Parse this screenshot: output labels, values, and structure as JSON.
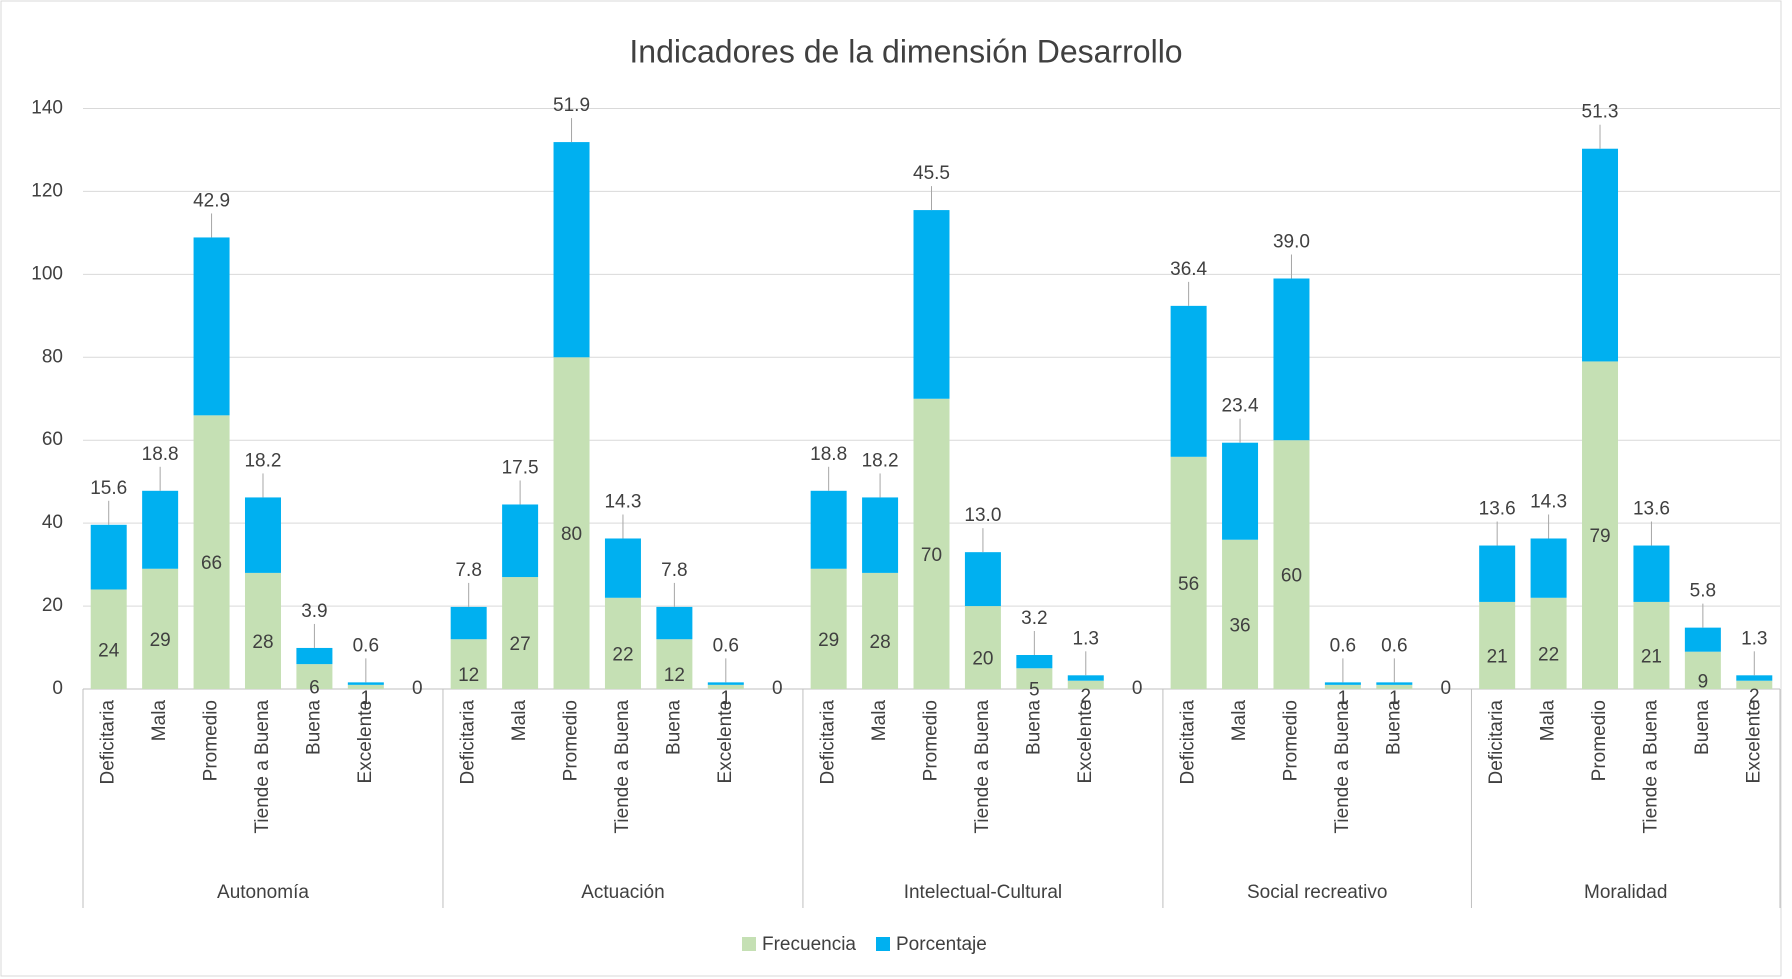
{
  "chart_data": {
    "type": "stacked_bar",
    "title": "Indicadores de la dimensión Desarrollo",
    "groups": [
      {
        "name": "Autonomía",
        "categories": [
          "Deficitaria",
          "Mala",
          "Promedio",
          "Tiende  a Buena",
          "Buena",
          "Excelente",
          null
        ]
      },
      {
        "name": "Actuación",
        "categories": [
          "Deficitaria",
          "Mala",
          "Promedio",
          "Tiende  a Buena",
          "Buena",
          "Excelente",
          null
        ]
      },
      {
        "name": "Intelectual-Cultural",
        "categories": [
          "Deficitaria",
          "Mala",
          "Promedio",
          "Tiende  a Buena",
          "Buena",
          "Excelente",
          null
        ]
      },
      {
        "name": "Social recreativo",
        "categories": [
          "Deficitaria",
          "Mala",
          "Promedio",
          "Tiende  a Buena",
          "Buena",
          null
        ]
      },
      {
        "name": "Moralidad",
        "categories": [
          "Deficitaria",
          "Mala",
          "Promedio",
          "Tiende  a Buena",
          "Buena",
          "Excelente"
        ]
      }
    ],
    "series": [
      {
        "name": "Frecuencia",
        "color": "#c5e0b4",
        "values": [
          24,
          29,
          66,
          28,
          6,
          1,
          0,
          12,
          27,
          80,
          22,
          12,
          1,
          0,
          29,
          28,
          70,
          20,
          5,
          2,
          0,
          56,
          36,
          60,
          1,
          1,
          0,
          21,
          22,
          79,
          21,
          9,
          2
        ]
      },
      {
        "name": "Porcentaje",
        "color": "#00b0f0",
        "values": [
          15.6,
          18.8,
          42.9,
          18.2,
          3.9,
          0.6,
          null,
          7.8,
          17.5,
          51.9,
          14.3,
          7.8,
          0.6,
          null,
          18.8,
          18.2,
          45.5,
          13.0,
          3.2,
          1.3,
          null,
          36.4,
          23.4,
          39.0,
          0.6,
          0.6,
          null,
          13.6,
          14.3,
          51.3,
          13.6,
          5.8,
          1.3
        ],
        "value_labels": [
          "15.6",
          "18.8",
          "42.9",
          "18.2",
          "3.9",
          "0.6",
          null,
          "7.8",
          "17.5",
          "51.9",
          "14.3",
          "7.8",
          "0.6",
          null,
          "18.8",
          "18.2",
          "45.5",
          "13.0",
          "3.2",
          "1.3",
          null,
          "36.4",
          "23.4",
          "39.0",
          "0.6",
          "0.6",
          null,
          "13.6",
          "14.3",
          "51.3",
          "13.6",
          "5.8",
          "1.3"
        ]
      }
    ],
    "ylim": [
      0,
      140
    ],
    "yticks": [
      0,
      20,
      40,
      60,
      80,
      100,
      120,
      140
    ],
    "grid": true,
    "legend": "bottom"
  }
}
